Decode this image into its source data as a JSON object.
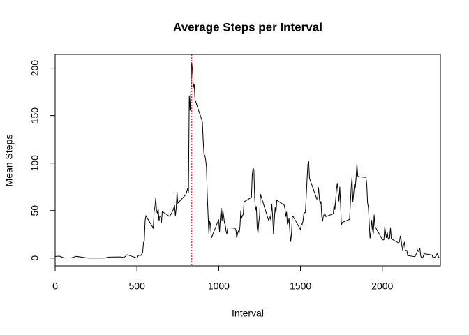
{
  "chart_data": {
    "type": "line",
    "title": "Average Steps per Interval",
    "xlabel": "Interval",
    "ylabel": "Mean Steps",
    "x": [
      0,
      25,
      55,
      100,
      130,
      200,
      230,
      300,
      330,
      400,
      420,
      440,
      450,
      500,
      510,
      525,
      535,
      540,
      545,
      550,
      555,
      600,
      605,
      610,
      615,
      620,
      625,
      630,
      635,
      640,
      645,
      650,
      655,
      700,
      720,
      730,
      735,
      740,
      745,
      750,
      800,
      810,
      815,
      820,
      825,
      830,
      835,
      840,
      845,
      850,
      855,
      900,
      905,
      910,
      915,
      920,
      925,
      930,
      935,
      940,
      945,
      950,
      955,
      1000,
      1005,
      1010,
      1015,
      1020,
      1025,
      1030,
      1035,
      1040,
      1045,
      1050,
      1055,
      1100,
      1105,
      1110,
      1115,
      1120,
      1125,
      1130,
      1135,
      1140,
      1145,
      1150,
      1155,
      1200,
      1205,
      1210,
      1215,
      1220,
      1225,
      1230,
      1235,
      1240,
      1245,
      1250,
      1255,
      1300,
      1305,
      1310,
      1315,
      1320,
      1325,
      1330,
      1335,
      1340,
      1345,
      1350,
      1355,
      1400,
      1405,
      1410,
      1415,
      1420,
      1425,
      1430,
      1435,
      1440,
      1445,
      1450,
      1455,
      1500,
      1505,
      1510,
      1515,
      1520,
      1525,
      1530,
      1535,
      1540,
      1545,
      1550,
      1555,
      1600,
      1605,
      1610,
      1615,
      1620,
      1625,
      1630,
      1635,
      1640,
      1645,
      1650,
      1655,
      1700,
      1705,
      1710,
      1715,
      1720,
      1725,
      1730,
      1735,
      1740,
      1745,
      1750,
      1755,
      1800,
      1805,
      1810,
      1815,
      1820,
      1825,
      1830,
      1835,
      1840,
      1845,
      1850,
      1855,
      1900,
      1905,
      1910,
      1915,
      1920,
      1925,
      1930,
      1935,
      1940,
      1945,
      1950,
      1955,
      2000,
      2005,
      2010,
      2015,
      2020,
      2025,
      2030,
      2035,
      2040,
      2045,
      2050,
      2055,
      2100,
      2105,
      2110,
      2115,
      2120,
      2125,
      2130,
      2135,
      2140,
      2145,
      2150,
      2155,
      2200,
      2205,
      2210,
      2215,
      2220,
      2225,
      2230,
      2235,
      2240,
      2245,
      2250,
      2255,
      2300,
      2305,
      2310,
      2315,
      2320,
      2325,
      2330,
      2335,
      2340,
      2345,
      2350,
      2355
    ],
    "values": [
      1.7,
      2.1,
      0.1,
      0.3,
      1.8,
      0,
      0,
      0,
      1.0,
      1.2,
      0.5,
      3.5,
      3.0,
      0,
      3.0,
      2.9,
      6.1,
      16.0,
      18.3,
      39.5,
      44.5,
      31.5,
      49.3,
      53.8,
      63.5,
      50.0,
      47.1,
      52.2,
      39.3,
      44.0,
      44.2,
      37.4,
      49.0,
      43.8,
      49.9,
      55.7,
      44.3,
      52.3,
      69.5,
      57.8,
      67.0,
      73.4,
      68.8,
      171.2,
      155.4,
      177.3,
      206.2,
      195.9,
      179.6,
      183.4,
      167.0,
      143.5,
      124.0,
      109.1,
      108.1,
      103.7,
      95.9,
      66.2,
      45.2,
      24.8,
      38.8,
      35.0,
      21.1,
      40.6,
      27.0,
      42.4,
      52.7,
      38.9,
      50.8,
      44.3,
      37.4,
      34.7,
      28.3,
      25.1,
      31.9,
      31.4,
      29.7,
      21.3,
      25.5,
      28.4,
      26.5,
      33.4,
      50.0,
      42.0,
      44.6,
      46.0,
      59.2,
      63.9,
      87.7,
      94.8,
      92.8,
      63.4,
      50.2,
      54.5,
      32.4,
      26.5,
      37.7,
      45.1,
      67.3,
      42.3,
      39.9,
      43.3,
      41.0,
      46.2,
      56.4,
      42.8,
      25.1,
      40.0,
      53.5,
      47.3,
      60.8,
      55.8,
      52.0,
      43.6,
      48.7,
      35.5,
      37.5,
      41.8,
      27.5,
      17.1,
      26.1,
      43.6,
      43.8,
      30.0,
      36.1,
      35.5,
      38.8,
      46.0,
      47.8,
      48.1,
      65.3,
      82.9,
      98.7,
      102.1,
      84.0,
      62.1,
      64.1,
      74.5,
      63.2,
      56.9,
      59.8,
      43.9,
      38.6,
      44.7,
      45.5,
      46.2,
      43.7,
      46.6,
      56.3,
      50.7,
      61.2,
      72.7,
      78.9,
      68.9,
      59.7,
      75.1,
      56.5,
      34.8,
      37.5,
      40.7,
      58.0,
      74.7,
      85.3,
      59.3,
      67.8,
      77.7,
      74.2,
      85.3,
      99.5,
      86.6,
      85.6,
      84.9,
      77.8,
      58.0,
      53.4,
      36.3,
      20.7,
      27.4,
      40.0,
      30.2,
      25.5,
      45.7,
      33.5,
      19.6,
      19.0,
      19.3,
      33.3,
      26.8,
      21.2,
      27.3,
      21.3,
      19.5,
      21.3,
      32.3,
      20.2,
      15.9,
      17.2,
      23.5,
      19.2,
      12.5,
      8.0,
      14.7,
      16.3,
      8.7,
      7.8,
      8.1,
      2.6,
      1.5,
      3.7,
      4.8,
      8.5,
      7.1,
      8.7,
      9.8,
      2.2,
      0.3,
      0.1,
      1.6,
      4.6,
      3.3,
      2.8,
      0,
      0.8,
      1.0,
      1.6,
      2.6,
      4.7,
      3.3,
      0.6,
      0.2,
      1.1
    ],
    "color": "#000000",
    "vline": {
      "x": 835,
      "color": "#ff0000"
    },
    "xlim": [
      0,
      2355
    ],
    "ylim": [
      -8.25,
      214.42
    ],
    "xticks": [
      0,
      500,
      1000,
      1500,
      2000
    ],
    "yticks": [
      0,
      50,
      100,
      150,
      200
    ]
  }
}
